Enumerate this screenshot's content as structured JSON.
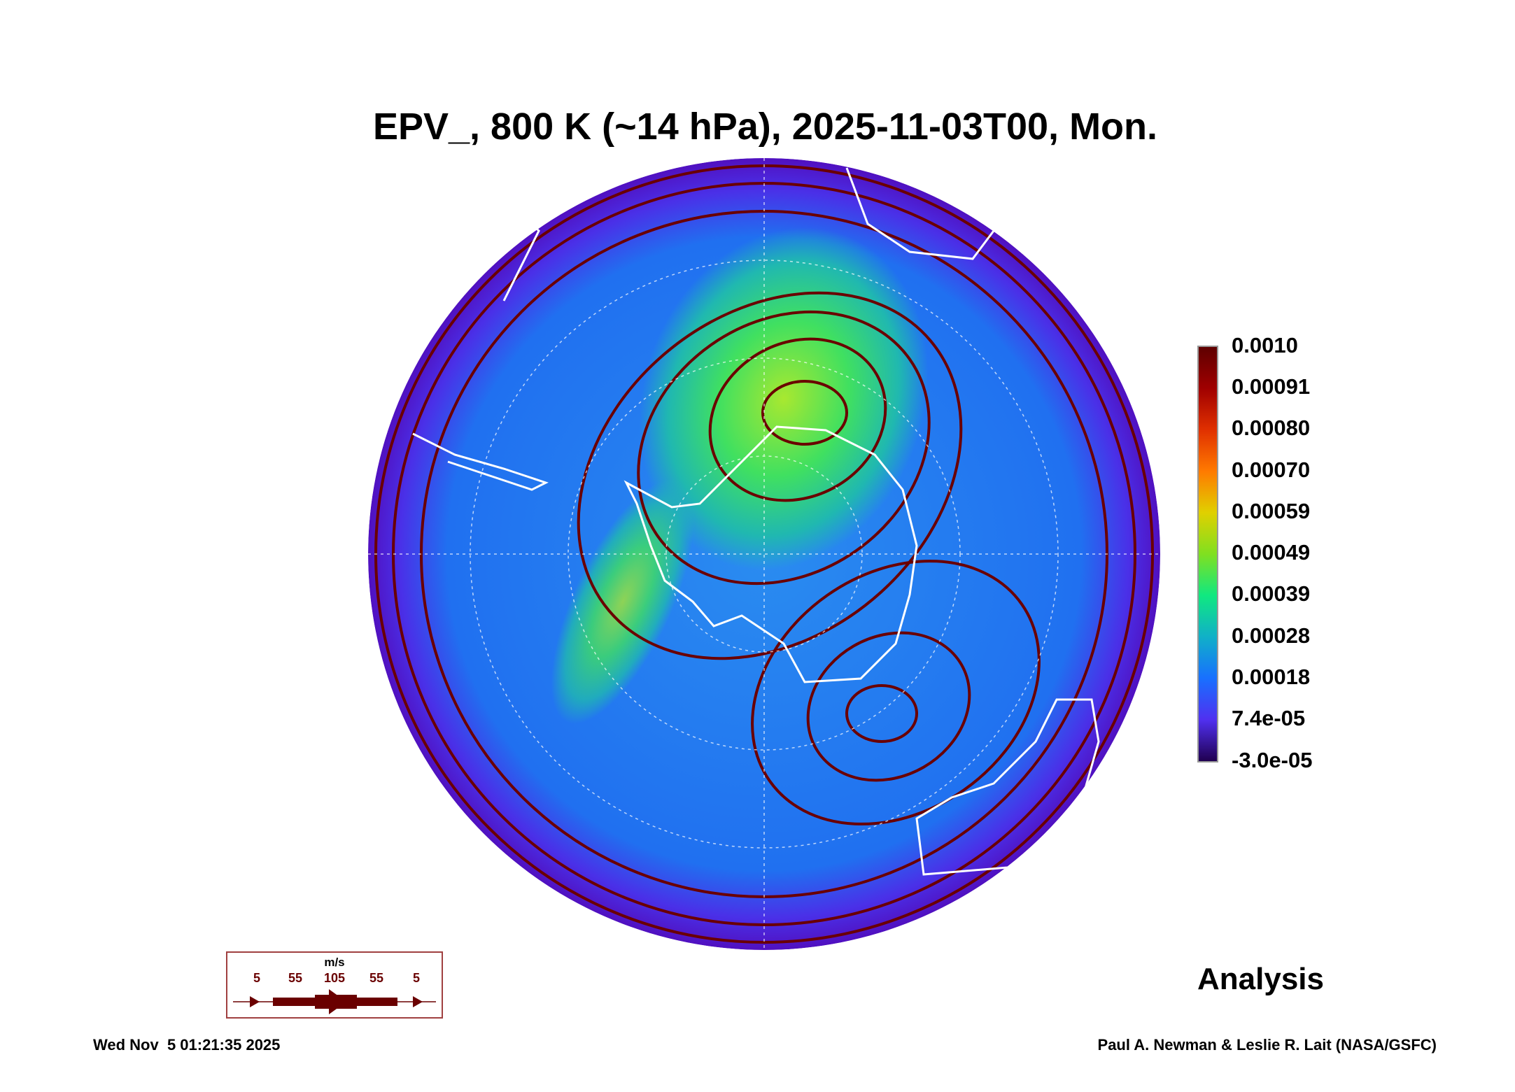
{
  "chart_data": {
    "type": "heatmap",
    "title": "EPV_, 800 K (~14 hPa), 2025-11-03T00, Mon.",
    "projection": "south polar stereographic",
    "variable": "Ertel potential vorticity",
    "colorbar": {
      "ticks": [
        "0.0010",
        "0.00091",
        "0.00080",
        "0.00070",
        "0.00059",
        "0.00049",
        "0.00039",
        "0.00028",
        "0.00018",
        "7.4e-05",
        "-3.0e-05"
      ],
      "range": [
        -3e-05,
        0.001
      ]
    },
    "wind_legend": {
      "units": "m/s",
      "values": [
        "5",
        "55",
        "105",
        "55",
        "5"
      ]
    },
    "label": "Analysis"
  },
  "footer": {
    "timestamp": "Wed Nov  5 01:21:35 2025",
    "credit": "Paul A. Newman & Leslie R. Lait (NASA/GSFC)"
  },
  "colors": {
    "streamline": "#6a0000",
    "coast": "#ffffff"
  }
}
